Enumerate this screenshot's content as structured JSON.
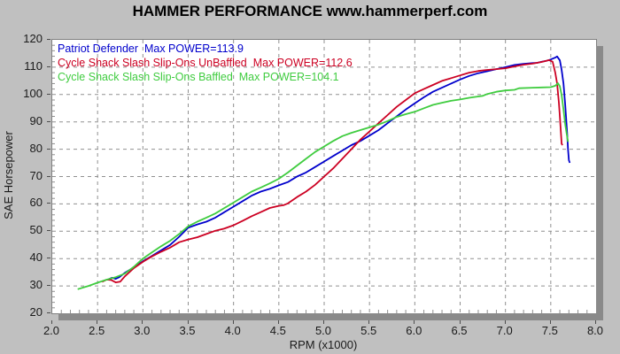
{
  "window": {
    "title": "HAMMER PERFORMANCE www.hammerperf.com"
  },
  "colors": {
    "background": "#c0c0c0",
    "plot_background": "#ffffff",
    "grid": "#909090",
    "plot_border": "#808080",
    "shadow": "#8a8a8a",
    "tick_text": "#1a1a1a",
    "blue_series": "#0000cc",
    "red_series": "#cc0022",
    "green_series": "#3fcc3f"
  },
  "chart_data": {
    "type": "line",
    "title": "HAMMER PERFORMANCE www.hammerperf.com",
    "xlabel": "RPM (x1000)",
    "ylabel": "SAE Horsepower",
    "xlim": [
      2.0,
      8.0
    ],
    "ylim": [
      20,
      120
    ],
    "x_ticks": [
      2.0,
      2.5,
      3.0,
      3.5,
      4.0,
      4.5,
      5.0,
      5.5,
      6.0,
      6.5,
      7.0,
      7.5,
      8.0
    ],
    "x_tick_labels": [
      "2.0",
      "2.5",
      "3.0",
      "3.5",
      "4.0",
      "4.5",
      "5.0",
      "5.5",
      "6.0",
      "6.5",
      "7.0",
      "7.5",
      "8.0"
    ],
    "y_ticks": [
      20,
      30,
      40,
      50,
      60,
      70,
      80,
      90,
      100,
      110,
      120
    ],
    "y_tick_labels": [
      "20",
      "30",
      "40",
      "50",
      "60",
      "70",
      "80",
      "90",
      "100",
      "110",
      "120"
    ],
    "x_minor_step": 0.1,
    "y_minor_step": 2,
    "grid": "dashed",
    "legend_position": "top-left",
    "series": [
      {
        "name": "Patriot Defender",
        "legend_label": "Patriot Defender  Max POWER=113.9",
        "max_power": 113.9,
        "color": "#0000cc",
        "points": [
          [
            2.62,
            32.4
          ],
          [
            2.66,
            33.0
          ],
          [
            2.7,
            32.6
          ],
          [
            2.74,
            33.2
          ],
          [
            2.8,
            34.8
          ],
          [
            2.9,
            36.8
          ],
          [
            3.0,
            39.0
          ],
          [
            3.1,
            41.0
          ],
          [
            3.2,
            43.0
          ],
          [
            3.3,
            45.0
          ],
          [
            3.4,
            48.0
          ],
          [
            3.5,
            51.3
          ],
          [
            3.6,
            52.5
          ],
          [
            3.7,
            53.5
          ],
          [
            3.8,
            55.0
          ],
          [
            3.9,
            57.0
          ],
          [
            4.0,
            59.0
          ],
          [
            4.1,
            61.0
          ],
          [
            4.2,
            63.0
          ],
          [
            4.3,
            64.5
          ],
          [
            4.4,
            65.5
          ],
          [
            4.5,
            66.8
          ],
          [
            4.6,
            68.0
          ],
          [
            4.7,
            70.0
          ],
          [
            4.8,
            71.5
          ],
          [
            4.9,
            73.5
          ],
          [
            5.0,
            75.5
          ],
          [
            5.1,
            77.5
          ],
          [
            5.2,
            79.5
          ],
          [
            5.3,
            81.5
          ],
          [
            5.4,
            83.0
          ],
          [
            5.5,
            85.0
          ],
          [
            5.6,
            87.0
          ],
          [
            5.7,
            89.5
          ],
          [
            5.8,
            92.0
          ],
          [
            5.9,
            94.5
          ],
          [
            6.0,
            96.8
          ],
          [
            6.1,
            99.0
          ],
          [
            6.2,
            101.0
          ],
          [
            6.3,
            102.5
          ],
          [
            6.4,
            104.0
          ],
          [
            6.5,
            105.5
          ],
          [
            6.6,
            106.8
          ],
          [
            6.7,
            107.8
          ],
          [
            6.8,
            108.5
          ],
          [
            6.9,
            109.3
          ],
          [
            7.0,
            110.0
          ],
          [
            7.1,
            110.8
          ],
          [
            7.2,
            111.2
          ],
          [
            7.3,
            111.5
          ],
          [
            7.35,
            111.6
          ],
          [
            7.4,
            112.0
          ],
          [
            7.45,
            112.3
          ],
          [
            7.5,
            112.8
          ],
          [
            7.55,
            113.5
          ],
          [
            7.57,
            113.9
          ],
          [
            7.6,
            112.5
          ],
          [
            7.62,
            109.0
          ],
          [
            7.64,
            104.0
          ],
          [
            7.66,
            96.0
          ],
          [
            7.68,
            86.0
          ],
          [
            7.69,
            80.0
          ],
          [
            7.7,
            76.0
          ],
          [
            7.71,
            75.0
          ]
        ]
      },
      {
        "name": "Cycle Shack Slash Slip-Ons UnBaffled",
        "legend_label": "Cycle Shack Slash Slip-Ons UnBaffled  Max POWER=112.6",
        "max_power": 112.6,
        "color": "#cc0022",
        "points": [
          [
            2.55,
            31.5
          ],
          [
            2.6,
            32.3
          ],
          [
            2.65,
            32.2
          ],
          [
            2.7,
            31.3
          ],
          [
            2.75,
            31.6
          ],
          [
            2.8,
            33.5
          ],
          [
            2.9,
            36.5
          ],
          [
            3.0,
            38.8
          ],
          [
            3.1,
            40.8
          ],
          [
            3.2,
            42.5
          ],
          [
            3.3,
            44.0
          ],
          [
            3.4,
            46.0
          ],
          [
            3.5,
            47.0
          ],
          [
            3.6,
            47.8
          ],
          [
            3.7,
            49.0
          ],
          [
            3.8,
            50.2
          ],
          [
            3.9,
            51.0
          ],
          [
            4.0,
            52.2
          ],
          [
            4.1,
            53.8
          ],
          [
            4.2,
            55.5
          ],
          [
            4.3,
            57.0
          ],
          [
            4.4,
            58.5
          ],
          [
            4.5,
            59.3
          ],
          [
            4.55,
            59.5
          ],
          [
            4.6,
            60.2
          ],
          [
            4.7,
            62.5
          ],
          [
            4.8,
            64.5
          ],
          [
            4.9,
            67.0
          ],
          [
            5.0,
            70.0
          ],
          [
            5.1,
            73.0
          ],
          [
            5.2,
            76.5
          ],
          [
            5.3,
            80.0
          ],
          [
            5.4,
            83.5
          ],
          [
            5.5,
            86.5
          ],
          [
            5.6,
            89.5
          ],
          [
            5.7,
            92.5
          ],
          [
            5.8,
            95.5
          ],
          [
            5.9,
            98.0
          ],
          [
            6.0,
            100.5
          ],
          [
            6.1,
            102.0
          ],
          [
            6.2,
            103.5
          ],
          [
            6.3,
            105.0
          ],
          [
            6.4,
            106.0
          ],
          [
            6.5,
            107.0
          ],
          [
            6.6,
            108.0
          ],
          [
            6.7,
            108.6
          ],
          [
            6.8,
            109.0
          ],
          [
            6.9,
            109.3
          ],
          [
            7.0,
            109.6
          ],
          [
            7.1,
            110.3
          ],
          [
            7.2,
            110.9
          ],
          [
            7.3,
            111.3
          ],
          [
            7.4,
            111.9
          ],
          [
            7.45,
            112.3
          ],
          [
            7.48,
            112.6
          ],
          [
            7.52,
            112.0
          ],
          [
            7.55,
            108.0
          ],
          [
            7.57,
            104.0
          ],
          [
            7.59,
            97.0
          ],
          [
            7.6,
            92.0
          ],
          [
            7.61,
            87.0
          ],
          [
            7.62,
            82.0
          ],
          [
            7.63,
            81.5
          ]
        ]
      },
      {
        "name": "Cycle Shack Slash Slip-Ons Baffled",
        "legend_label": "Cycle Shack Slash Slip-Ons Baffled  Max POWER=104.1",
        "max_power": 104.1,
        "color": "#3fcc3f",
        "points": [
          [
            2.28,
            28.8
          ],
          [
            2.35,
            29.5
          ],
          [
            2.4,
            30.0
          ],
          [
            2.5,
            31.2
          ],
          [
            2.6,
            32.3
          ],
          [
            2.7,
            33.2
          ],
          [
            2.8,
            34.5
          ],
          [
            2.9,
            37.0
          ],
          [
            3.0,
            40.0
          ],
          [
            3.1,
            42.3
          ],
          [
            3.2,
            44.5
          ],
          [
            3.3,
            46.5
          ],
          [
            3.4,
            49.0
          ],
          [
            3.5,
            51.8
          ],
          [
            3.6,
            53.5
          ],
          [
            3.7,
            55.0
          ],
          [
            3.8,
            56.5
          ],
          [
            3.9,
            58.5
          ],
          [
            4.0,
            60.5
          ],
          [
            4.1,
            62.5
          ],
          [
            4.2,
            64.5
          ],
          [
            4.3,
            66.0
          ],
          [
            4.4,
            67.5
          ],
          [
            4.5,
            69.2
          ],
          [
            4.6,
            71.5
          ],
          [
            4.7,
            74.0
          ],
          [
            4.8,
            76.5
          ],
          [
            4.9,
            79.0
          ],
          [
            5.0,
            81.0
          ],
          [
            5.1,
            83.0
          ],
          [
            5.2,
            84.8
          ],
          [
            5.3,
            86.0
          ],
          [
            5.4,
            87.0
          ],
          [
            5.5,
            88.0
          ],
          [
            5.6,
            89.0
          ],
          [
            5.7,
            90.3
          ],
          [
            5.8,
            91.8
          ],
          [
            5.9,
            92.8
          ],
          [
            6.0,
            93.7
          ],
          [
            6.1,
            95.0
          ],
          [
            6.2,
            96.2
          ],
          [
            6.3,
            97.0
          ],
          [
            6.4,
            97.7
          ],
          [
            6.5,
            98.2
          ],
          [
            6.6,
            98.8
          ],
          [
            6.7,
            99.3
          ],
          [
            6.75,
            99.5
          ],
          [
            6.8,
            100.2
          ],
          [
            6.9,
            101.0
          ],
          [
            7.0,
            101.5
          ],
          [
            7.1,
            101.7
          ],
          [
            7.15,
            102.3
          ],
          [
            7.3,
            102.5
          ],
          [
            7.4,
            102.6
          ],
          [
            7.5,
            102.7
          ],
          [
            7.55,
            103.2
          ],
          [
            7.58,
            104.1
          ],
          [
            7.6,
            103.0
          ],
          [
            7.62,
            99.8
          ],
          [
            7.64,
            94.5
          ],
          [
            7.66,
            89.0
          ],
          [
            7.68,
            84.7
          ],
          [
            7.69,
            82.7
          ]
        ]
      }
    ]
  }
}
